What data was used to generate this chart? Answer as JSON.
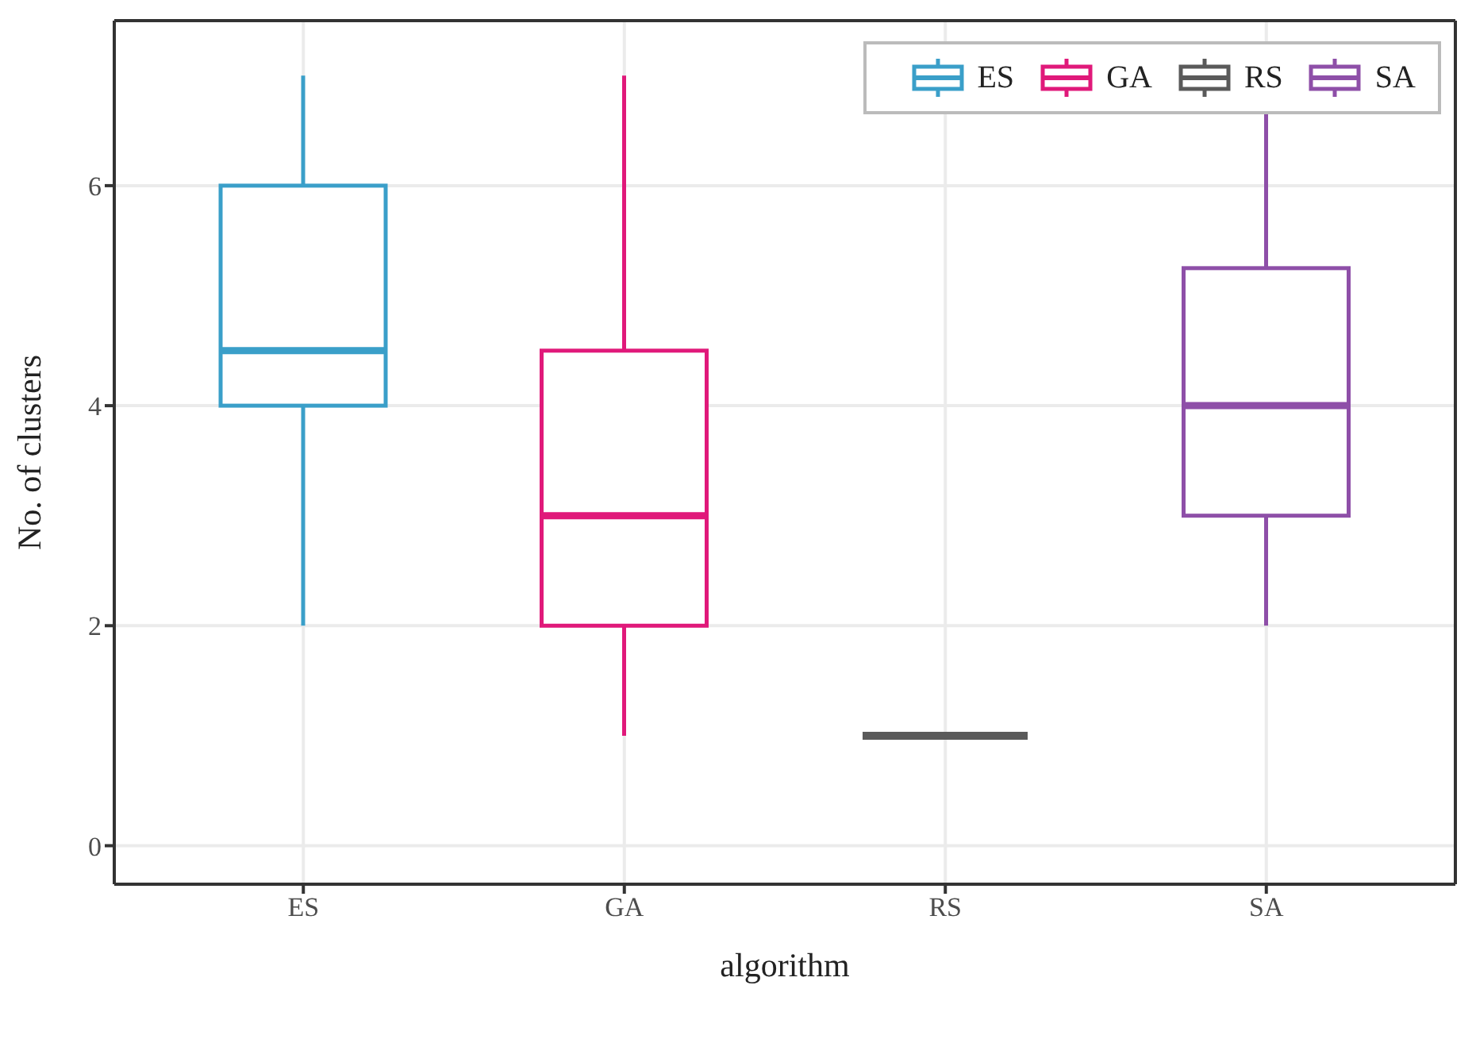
{
  "chart_data": {
    "type": "box",
    "xlabel": "algorithm",
    "ylabel": "No. of clusters",
    "categories": [
      "ES",
      "GA",
      "RS",
      "SA"
    ],
    "series": [
      {
        "name": "ES",
        "color": "#3a9fc9",
        "boxes": [
          {
            "low": 2,
            "q1": 4,
            "median": 4.5,
            "q3": 6,
            "high": 7
          },
          null,
          null,
          null
        ]
      },
      {
        "name": "GA",
        "color": "#e0197a",
        "boxes": [
          null,
          {
            "low": 1,
            "q1": 2,
            "median": 3,
            "q3": 4.5,
            "high": 7
          },
          null,
          null
        ]
      },
      {
        "name": "RS",
        "color": "#5a5a5a",
        "boxes": [
          null,
          null,
          {
            "low": 1,
            "q1": 1,
            "median": 1,
            "q3": 1,
            "high": 1
          },
          null
        ]
      },
      {
        "name": "SA",
        "color": "#8e4fa8",
        "boxes": [
          null,
          null,
          null,
          {
            "low": 2,
            "q1": 3,
            "median": 4,
            "q3": 5.25,
            "high": 7
          }
        ]
      }
    ],
    "ylim": [
      -0.35,
      7.5
    ],
    "yticks": [
      0,
      2,
      4,
      6
    ],
    "grid": true,
    "legend": "top right"
  }
}
